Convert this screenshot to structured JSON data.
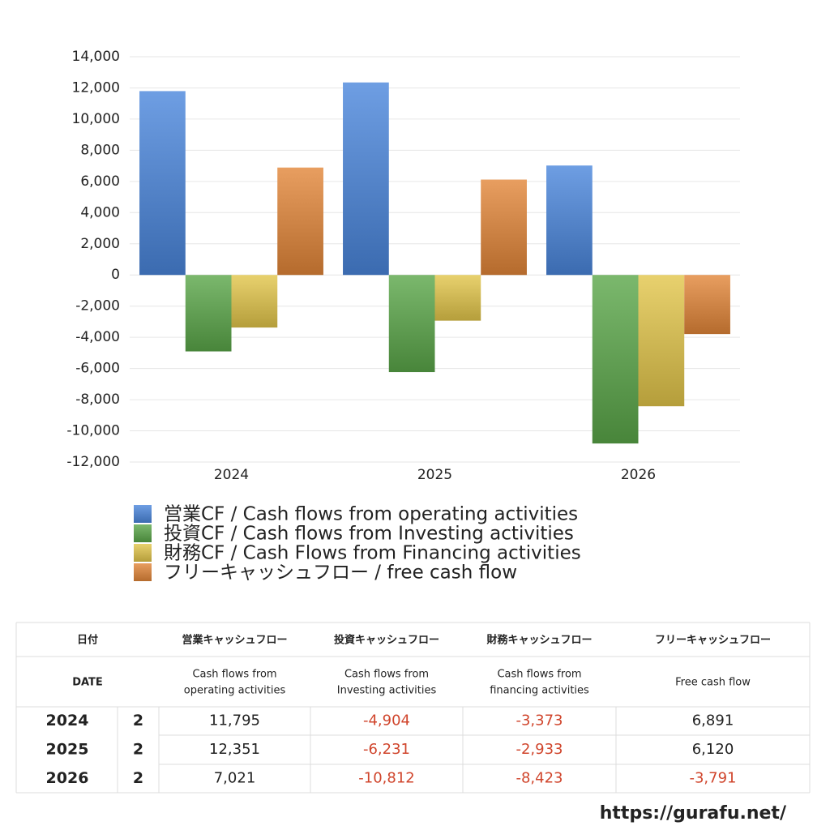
{
  "chart_data": {
    "type": "bar",
    "categories": [
      "2024",
      "2025",
      "2026"
    ],
    "series": [
      {
        "name": "営業CF / Cash flows from operating activities",
        "color": "#4a86dc",
        "values": [
          11795,
          12351,
          7021
        ]
      },
      {
        "name": "投資CF / Cash flows from Investing activities",
        "color": "#5aa648",
        "values": [
          -4904,
          -6231,
          -10812
        ]
      },
      {
        "name": "財務CF / Cash Flows from Financing activities",
        "color": "#e2c64a",
        "values": [
          -3373,
          -2933,
          -8423
        ]
      },
      {
        "name": "フリーキャッシュフロー / free cash flow",
        "color": "#e28638",
        "values": [
          6891,
          6120,
          -3791
        ]
      }
    ],
    "ylim": [
      -12000,
      14000
    ],
    "yticks": [
      {
        "value": -12000,
        "label": "-12,000"
      },
      {
        "value": -10000,
        "label": "-10,000"
      },
      {
        "value": -8000,
        "label": "-8,000"
      },
      {
        "value": -6000,
        "label": "-6,000"
      },
      {
        "value": -4000,
        "label": "-4,000"
      },
      {
        "value": -2000,
        "label": "-2,000"
      },
      0,
      {
        "value": 2000,
        "label": "2,000"
      },
      {
        "value": 4000,
        "label": "4,000"
      },
      {
        "value": 6000,
        "label": "6,000"
      },
      {
        "value": 8000,
        "label": "8,000"
      },
      {
        "value": 10000,
        "label": "10,000"
      },
      {
        "value": 12000,
        "label": "12,000"
      },
      {
        "value": 14000,
        "label": "14,000"
      }
    ],
    "grid": true,
    "legend": "bottom"
  },
  "table": {
    "header": [
      "日付",
      "営業キャッシュフロー",
      "投資キャッシュフロー",
      "財務キャッシュフロー",
      "フリーキャッシュフロー"
    ],
    "subheader": [
      [
        "DATE"
      ],
      [
        "Cash flows from",
        "operating activities"
      ],
      [
        "Cash flows from",
        "Investing activities"
      ],
      [
        "Cash flows from",
        "financing activities"
      ],
      [
        "Free cash flow"
      ]
    ],
    "rows": [
      [
        "2024",
        "2",
        "11,795",
        "-4,904",
        "-3,373",
        "6,891"
      ],
      [
        "2025",
        "2",
        "12,351",
        "-6,231",
        "-2,933",
        "6,120"
      ],
      [
        "2026",
        "2",
        "7,021",
        "-10,812",
        "-8,423",
        "-3,791"
      ]
    ]
  },
  "footer": "https://gurafu.net/"
}
